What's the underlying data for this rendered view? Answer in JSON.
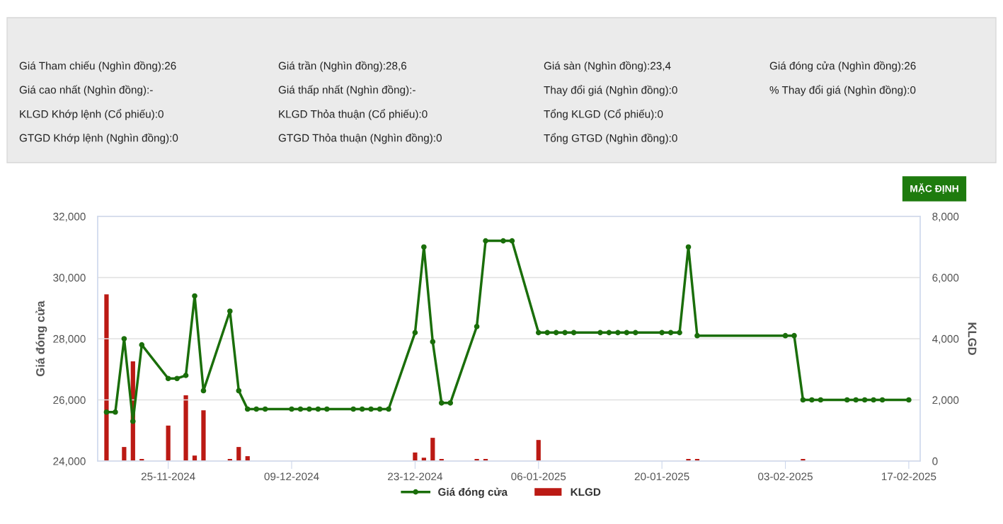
{
  "chart_data": [
    {
      "type": "other",
      "annotations": [
        "Giá Tham chiếu (Nghìn đồng):26",
        "Giá trần (Nghìn đồng):28,6",
        "Giá sàn (Nghìn đồng):23,4",
        "Giá đóng cửa (Nghìn đồng):26",
        "Giá cao nhất (Nghìn đồng):-",
        "Giá thấp nhất (Nghìn đồng):-",
        "Thay đổi giá (Nghìn đồng):0",
        "% Thay đổi giá (Nghìn đồng):0",
        "KLGD Khớp lệnh (Cổ phiếu):0",
        "KLGD Thỏa thuận (Cổ phiếu):0",
        "Tổng KLGD (Cổ phiếu):0",
        "GTGD Khớp lệnh (Nghìn đồng):0",
        "GTGD Thỏa thuận (Nghìn đồng):0",
        "Tổng GTGD (Nghìn đồng):0"
      ]
    },
    {
      "type": "line",
      "ylabel": "Giá đóng cửa",
      "y2label": "KLGD",
      "annotations": [
        "MẶC ĐỊNH"
      ],
      "x": [
        "2024-11-18",
        "2024-11-19",
        "2024-11-20",
        "2024-11-21",
        "2024-11-22",
        "2024-11-25",
        "2024-11-26",
        "2024-11-27",
        "2024-11-28",
        "2024-11-29",
        "2024-12-02",
        "2024-12-03",
        "2024-12-04",
        "2024-12-05",
        "2024-12-06",
        "2024-12-09",
        "2024-12-10",
        "2024-12-11",
        "2024-12-12",
        "2024-12-13",
        "2024-12-16",
        "2024-12-17",
        "2024-12-18",
        "2024-12-19",
        "2024-12-20",
        "2024-12-23",
        "2024-12-24",
        "2024-12-25",
        "2024-12-26",
        "2024-12-27",
        "2024-12-30",
        "2024-12-31",
        "2025-01-02",
        "2025-01-03",
        "2025-01-06",
        "2025-01-07",
        "2025-01-08",
        "2025-01-09",
        "2025-01-10",
        "2025-01-13",
        "2025-01-14",
        "2025-01-15",
        "2025-01-16",
        "2025-01-17",
        "2025-01-20",
        "2025-01-21",
        "2025-01-22",
        "2025-01-23",
        "2025-01-24",
        "2025-02-03",
        "2025-02-04",
        "2025-02-05",
        "2025-02-06",
        "2025-02-07",
        "2025-02-10",
        "2025-02-11",
        "2025-02-12",
        "2025-02-13",
        "2025-02-14",
        "2025-02-17"
      ],
      "series": [
        {
          "name": "Giá đóng cửa",
          "type": "line",
          "color": "#1a6e0a",
          "values": [
            25600,
            25600,
            28000,
            25300,
            27800,
            26700,
            26700,
            26800,
            29400,
            26300,
            28900,
            26300,
            25700,
            25700,
            25700,
            25700,
            25700,
            25700,
            25700,
            25700,
            25700,
            25700,
            25700,
            25700,
            25700,
            28200,
            31000,
            27900,
            25900,
            25900,
            28400,
            31200,
            31200,
            31200,
            28200,
            28200,
            28200,
            28200,
            28200,
            28200,
            28200,
            28200,
            28200,
            28200,
            28200,
            28200,
            28200,
            31000,
            28100,
            28100,
            28100,
            26000,
            26000,
            26000,
            26000,
            26000,
            26000,
            26000,
            26000,
            26000
          ]
        },
        {
          "name": "KLGD",
          "type": "bar",
          "axis": "y2",
          "color": "#bb1a14",
          "values": [
            5450,
            0,
            460,
            3260,
            70,
            1160,
            0,
            2150,
            180,
            1660,
            70,
            460,
            160,
            0,
            0,
            0,
            0,
            0,
            0,
            0,
            0,
            0,
            0,
            0,
            0,
            280,
            110,
            760,
            70,
            0,
            70,
            70,
            0,
            0,
            690,
            0,
            0,
            0,
            0,
            0,
            0,
            0,
            0,
            0,
            0,
            0,
            0,
            70,
            70,
            0,
            0,
            70,
            0,
            0,
            0,
            0,
            0,
            0,
            0,
            0
          ]
        }
      ],
      "xlim": [
        "2024-11-17",
        "2025-02-18T07:00"
      ],
      "xticks": [
        {
          "value": "2024-11-25",
          "label": "25-11-2024"
        },
        {
          "value": "2024-12-09",
          "label": "09-12-2024"
        },
        {
          "value": "2024-12-23",
          "label": "23-12-2024"
        },
        {
          "value": "2025-01-06",
          "label": "06-01-2025"
        },
        {
          "value": "2025-01-20",
          "label": "20-01-2025"
        },
        {
          "value": "2025-02-03",
          "label": "03-02-2025"
        },
        {
          "value": "2025-02-17",
          "label": "17-02-2025"
        }
      ],
      "ylim": [
        24000,
        32000
      ],
      "yticks": [
        {
          "value": 24000,
          "label": "24,000"
        },
        {
          "value": 26000,
          "label": "26,000"
        },
        {
          "value": 28000,
          "label": "28,000"
        },
        {
          "value": 30000,
          "label": "30,000"
        },
        {
          "value": 32000,
          "label": "32,000"
        }
      ],
      "y2lim": [
        0,
        8000
      ],
      "y2ticks": [
        0,
        {
          "value": 2000,
          "label": "2,000"
        },
        {
          "value": 4000,
          "label": "4,000"
        },
        {
          "value": 6000,
          "label": "6,000"
        },
        {
          "value": 8000,
          "label": "8,000"
        }
      ],
      "grid": "y",
      "legend": "bottom",
      "marker": "circle",
      "line_style": "solid"
    }
  ]
}
